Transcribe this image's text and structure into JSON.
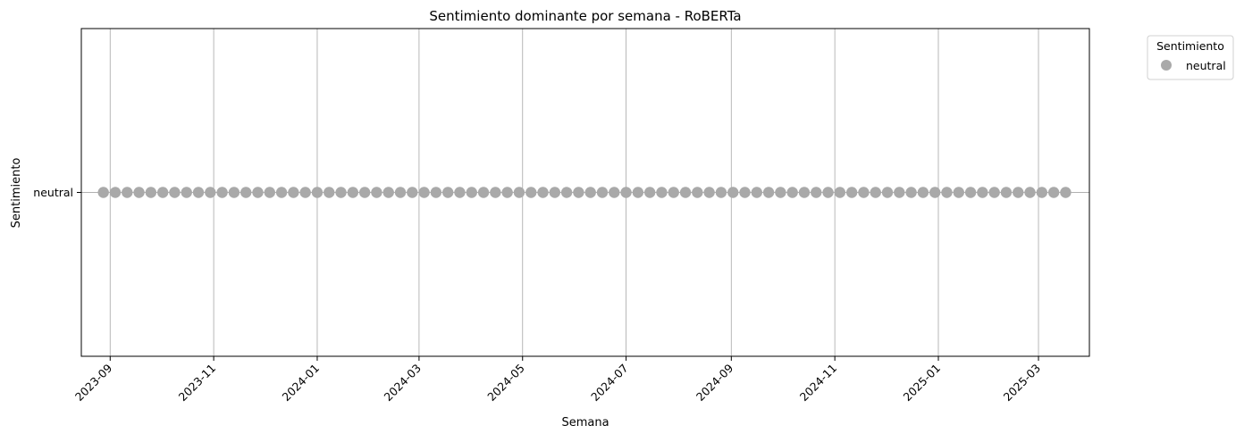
{
  "chart_data": {
    "type": "scatter",
    "title": "Sentimiento dominante por semana - RoBERTa",
    "xlabel": "Semana",
    "ylabel": "Sentimiento",
    "x_tick_labels": [
      "2023-09",
      "2023-11",
      "2024-01",
      "2024-03",
      "2024-05",
      "2024-07",
      "2024-09",
      "2024-11",
      "2025-01",
      "2025-03"
    ],
    "y_categories": [
      "neutral"
    ],
    "x_range": [
      "2023-08-15",
      "2025-03-31"
    ],
    "x_weekly": {
      "first_week": "2023-08-28",
      "last_week": "2025-03-17",
      "step_days": 7
    },
    "series": [
      {
        "name": "neutral",
        "y": "neutral",
        "color": "#a9a9a9"
      }
    ],
    "legend": {
      "title": "Sentimiento",
      "placement": "outside-top-right"
    },
    "grid": true
  }
}
